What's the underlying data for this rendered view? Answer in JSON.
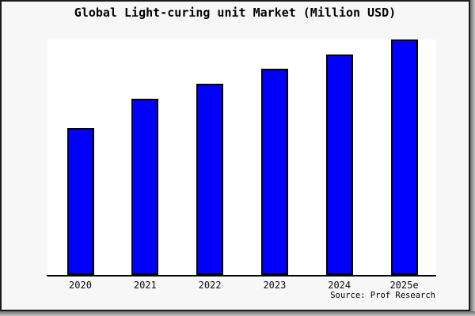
{
  "window": {
    "background": "#f7f7f7",
    "border_color": "#1a1a1a",
    "shadow_inner": "#6e6e6e",
    "shadow_outer": "#c6c6c6"
  },
  "header": {
    "title": "Global Light-curing unit Market (Million USD)"
  },
  "footer": {
    "source": "Source: Prof Research"
  },
  "chart_data": {
    "type": "bar",
    "title": "Global Light-curing unit Market (Million USD)",
    "categories": [
      "2020",
      "2021",
      "2022",
      "2023",
      "2024",
      "2025e"
    ],
    "values_pct_of_max": [
      62.4,
      74.8,
      81.2,
      87.6,
      93.6,
      100
    ],
    "values_note": "No numeric y-axis, gridlines or data labels are shown in the image; values are expressed as percent of the tallest bar (2025e), estimated from pixel heights",
    "xlabel": "",
    "ylabel": "",
    "grid": false,
    "legend": false,
    "y_axis_ticks_visible": false,
    "data_labels_visible": false,
    "bar_color": "#0000ff",
    "bar_border_color": "#000000",
    "axis_line_color": "#000000",
    "plot_background": "#ffffff",
    "source_note": "Source: Prof Research"
  }
}
